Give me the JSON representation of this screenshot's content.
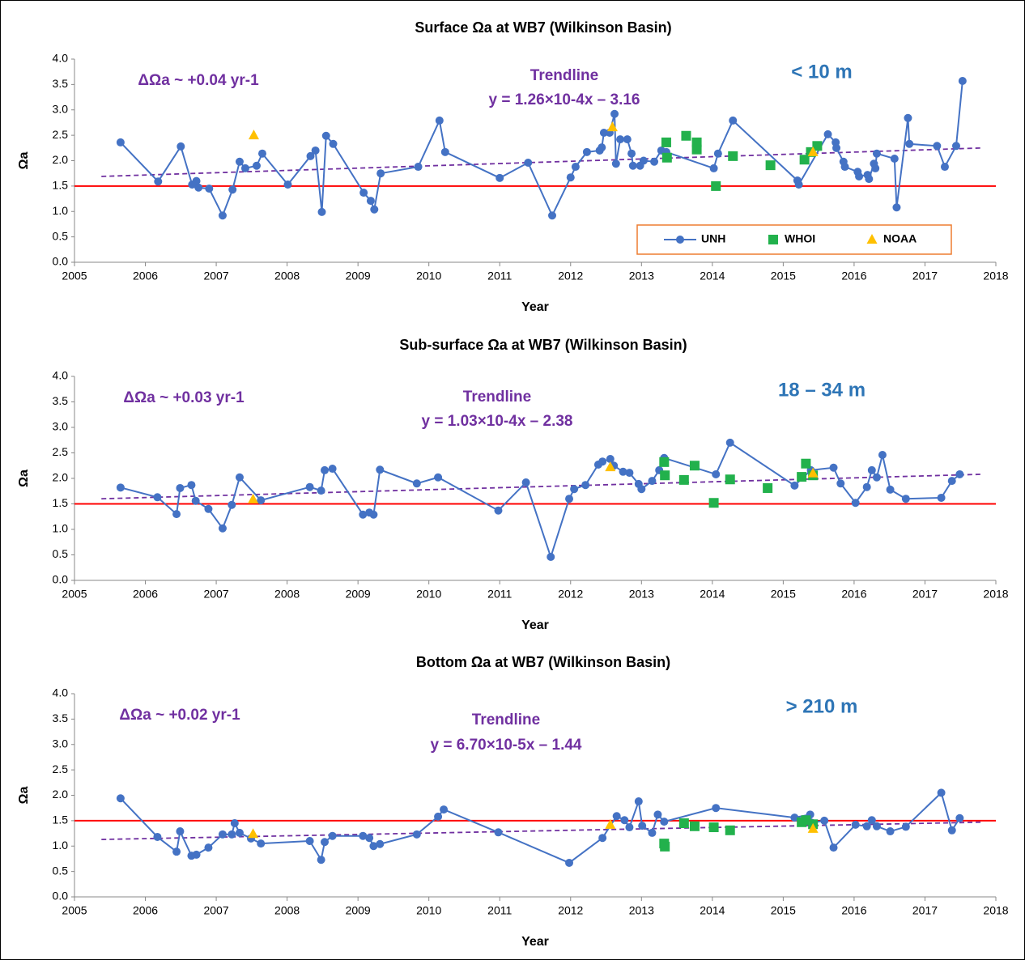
{
  "chart_data": [
    {
      "type": "line",
      "title": "Surface Ωa at WB7 (Wilkinson Basin)",
      "xlabel": "Year",
      "ylabel": "Ωa",
      "xlim": [
        2005,
        2018
      ],
      "xticks": [
        2005,
        2006,
        2007,
        2008,
        2009,
        2010,
        2011,
        2012,
        2013,
        2014,
        2015,
        2016,
        2017,
        2018
      ],
      "ylim": [
        0,
        4
      ],
      "yticks": [
        {
          "value": 0,
          "label": "0.0"
        },
        {
          "value": 0.5,
          "label": "0.5"
        },
        {
          "value": 1,
          "label": "1.0"
        },
        {
          "value": 1.5,
          "label": "1.5"
        },
        {
          "value": 2,
          "label": "2.0"
        },
        {
          "value": 2.5,
          "label": "2.5"
        },
        {
          "value": 3,
          "label": "3.0"
        },
        {
          "value": 3.5,
          "label": "3.5"
        },
        {
          "value": 4,
          "label": "4.0"
        }
      ],
      "threshold": {
        "value": 1.5,
        "color": "#ff0000"
      },
      "trendline": {
        "x": [
          2005.38,
          2017.8
        ],
        "values": [
          1.69,
          2.25
        ],
        "color": "#7030a0"
      },
      "annotations": {
        "rate": "ΔΩa ~ +0.04 yr-1",
        "trend_label": "Trendline",
        "trend_equation": "y = 1.26×10-4x – 3.16",
        "depth": "< 10 m"
      },
      "legend": "lower right",
      "series": [
        {
          "name": "UNH",
          "color": "#4472c4",
          "marker": "circle",
          "line": true,
          "x": [
            2005.65,
            2006.18,
            2006.5,
            2006.66,
            2006.72,
            2006.75,
            2006.9,
            2007.09,
            2007.23,
            2007.33,
            2007.41,
            2007.57,
            2007.65,
            2008.01,
            2008.33,
            2008.4,
            2008.49,
            2008.55,
            2008.65,
            2009.08,
            2009.18,
            2009.23,
            2009.32,
            2009.85,
            2010.15,
            2010.23,
            2011.0,
            2011.4,
            2011.74,
            2012.0,
            2012.07,
            2012.23,
            2012.41,
            2012.44,
            2012.47,
            2012.55,
            2012.62,
            2012.64,
            2012.7,
            2012.8,
            2012.86,
            2012.88,
            2012.98,
            2013.03,
            2013.18,
            2013.28,
            2013.35,
            2014.02,
            2014.08,
            2014.29,
            2015.2,
            2015.22,
            2015.63,
            2015.74,
            2015.75,
            2015.85,
            2015.87,
            2016.05,
            2016.07,
            2016.19,
            2016.21,
            2016.28,
            2016.3,
            2016.32,
            2016.57,
            2016.6,
            2016.76,
            2016.78,
            2017.17,
            2017.28,
            2017.44,
            2017.53
          ],
          "values": [
            2.36,
            1.59,
            2.28,
            1.53,
            1.6,
            1.47,
            1.45,
            0.92,
            1.43,
            1.98,
            1.85,
            1.9,
            2.14,
            1.53,
            2.09,
            2.2,
            0.99,
            2.49,
            2.33,
            1.37,
            1.21,
            1.04,
            1.75,
            1.88,
            2.79,
            2.17,
            1.66,
            1.96,
            0.92,
            1.67,
            1.88,
            2.17,
            2.2,
            2.26,
            2.55,
            2.55,
            2.92,
            1.94,
            2.42,
            2.42,
            2.14,
            1.9,
            1.9,
            2.0,
            1.98,
            2.2,
            2.17,
            1.85,
            2.14,
            2.79,
            1.61,
            1.53,
            2.52,
            2.36,
            2.25,
            1.98,
            1.88,
            1.78,
            1.69,
            1.72,
            1.64,
            1.94,
            1.85,
            2.14,
            2.04,
            1.08,
            2.84,
            2.33,
            2.29,
            1.88,
            2.29,
            3.57
          ]
        },
        {
          "name": "WHOI",
          "color": "#22b14c",
          "marker": "square",
          "line": false,
          "x": [
            2013.35,
            2013.36,
            2013.63,
            2013.78,
            2013.78,
            2014.05,
            2014.29,
            2014.82,
            2015.3,
            2015.39,
            2015.48
          ],
          "values": [
            2.36,
            2.06,
            2.49,
            2.36,
            2.22,
            1.5,
            2.09,
            1.91,
            2.02,
            2.17,
            2.29
          ]
        },
        {
          "name": "NOAA",
          "color": "#ffc000",
          "marker": "triangle",
          "line": false,
          "x": [
            2007.53,
            2012.59,
            2015.42
          ],
          "values": [
            2.5,
            2.66,
            2.17
          ]
        }
      ]
    },
    {
      "type": "line",
      "title": "Sub-surface Ωa at WB7 (Wilkinson Basin)",
      "xlabel": "Year",
      "ylabel": "Ωa",
      "xlim": [
        2005,
        2018
      ],
      "xticks": [
        2005,
        2006,
        2007,
        2008,
        2009,
        2010,
        2011,
        2012,
        2013,
        2014,
        2015,
        2016,
        2017,
        2018
      ],
      "ylim": [
        0,
        4
      ],
      "yticks": [
        {
          "value": 0,
          "label": "0.0"
        },
        {
          "value": 0.5,
          "label": "0.5"
        },
        {
          "value": 1,
          "label": "1.0"
        },
        {
          "value": 1.5,
          "label": "1.5"
        },
        {
          "value": 2,
          "label": "2.0"
        },
        {
          "value": 2.5,
          "label": "2.5"
        },
        {
          "value": 3,
          "label": "3.0"
        },
        {
          "value": 3.5,
          "label": "3.5"
        },
        {
          "value": 4,
          "label": "4.0"
        }
      ],
      "threshold": {
        "value": 1.5,
        "color": "#ff0000"
      },
      "trendline": {
        "x": [
          2005.38,
          2017.8
        ],
        "values": [
          1.6,
          2.08
        ],
        "color": "#7030a0"
      },
      "annotations": {
        "rate": "ΔΩa ~ +0.03 yr-1",
        "trend_label": "Trendline",
        "trend_equation": "y = 1.03×10-4x – 2.38",
        "depth": "18 – 34 m"
      },
      "series": [
        {
          "name": "UNH",
          "color": "#4472c4",
          "marker": "circle",
          "line": true,
          "x": [
            2005.65,
            2006.17,
            2006.44,
            2006.49,
            2006.65,
            2006.71,
            2006.89,
            2007.09,
            2007.22,
            2007.33,
            2007.63,
            2008.32,
            2008.48,
            2008.53,
            2008.64,
            2009.07,
            2009.16,
            2009.22,
            2009.31,
            2009.83,
            2010.13,
            2010.98,
            2011.37,
            2011.72,
            2011.98,
            2012.05,
            2012.21,
            2012.39,
            2012.45,
            2012.56,
            2012.61,
            2012.74,
            2012.83,
            2012.96,
            2013.0,
            2013.15,
            2013.25,
            2013.32,
            2014.05,
            2014.25,
            2015.16,
            2015.39,
            2015.71,
            2015.81,
            2016.02,
            2016.18,
            2016.25,
            2016.32,
            2016.4,
            2016.51,
            2016.73,
            2017.23,
            2017.38,
            2017.49
          ],
          "values": [
            1.82,
            1.63,
            1.3,
            1.81,
            1.87,
            1.56,
            1.4,
            1.02,
            1.48,
            2.02,
            1.57,
            1.83,
            1.76,
            2.16,
            2.19,
            1.29,
            1.33,
            1.29,
            2.17,
            1.9,
            2.02,
            1.37,
            1.92,
            0.46,
            1.6,
            1.79,
            1.87,
            2.27,
            2.33,
            2.38,
            2.25,
            2.13,
            2.11,
            1.89,
            1.79,
            1.95,
            2.16,
            2.4,
            2.08,
            2.7,
            1.86,
            2.16,
            2.21,
            1.9,
            1.52,
            1.83,
            2.16,
            2.02,
            2.46,
            1.78,
            1.6,
            1.62,
            1.95,
            2.08
          ]
        },
        {
          "name": "WHOI",
          "color": "#22b14c",
          "marker": "square",
          "line": false,
          "x": [
            2013.32,
            2013.33,
            2013.6,
            2013.75,
            2014.02,
            2014.25,
            2014.78,
            2015.26,
            2015.32,
            2015.42
          ],
          "values": [
            2.32,
            2.06,
            1.97,
            2.25,
            1.52,
            1.98,
            1.81,
            2.03,
            2.29,
            2.06
          ]
        },
        {
          "name": "NOAA",
          "color": "#ffc000",
          "marker": "triangle",
          "line": false,
          "x": [
            2007.52,
            2012.56,
            2015.42
          ],
          "values": [
            1.59,
            2.22,
            2.1
          ]
        }
      ]
    },
    {
      "type": "line",
      "title": "Bottom Ωa at WB7 (Wilkinson Basin)",
      "xlabel": "Year",
      "ylabel": "Ωa",
      "xlim": [
        2005,
        2018
      ],
      "xticks": [
        2005,
        2006,
        2007,
        2008,
        2009,
        2010,
        2011,
        2012,
        2013,
        2014,
        2015,
        2016,
        2017,
        2018
      ],
      "ylim": [
        0,
        4
      ],
      "yticks": [
        {
          "value": 0,
          "label": "0.0"
        },
        {
          "value": 0.5,
          "label": "0.5"
        },
        {
          "value": 1,
          "label": "1.0"
        },
        {
          "value": 1.5,
          "label": "1.5"
        },
        {
          "value": 2,
          "label": "2.0"
        },
        {
          "value": 2.5,
          "label": "2.5"
        },
        {
          "value": 3,
          "label": "3.0"
        },
        {
          "value": 3.5,
          "label": "3.5"
        },
        {
          "value": 4,
          "label": "4.0"
        }
      ],
      "threshold": {
        "value": 1.5,
        "color": "#ff0000"
      },
      "trendline": {
        "x": [
          2005.38,
          2017.8
        ],
        "values": [
          1.13,
          1.47
        ],
        "color": "#7030a0"
      },
      "annotations": {
        "rate": "ΔΩa ~ +0.02 yr-1",
        "trend_label": "Trendline",
        "trend_equation": "y = 6.70×10-5x – 1.44",
        "depth": "> 210 m"
      },
      "series": [
        {
          "name": "UNH",
          "color": "#4472c4",
          "marker": "circle",
          "line": true,
          "x": [
            2005.65,
            2006.17,
            2006.44,
            2006.49,
            2006.65,
            2006.72,
            2006.89,
            2007.09,
            2007.22,
            2007.26,
            2007.33,
            2007.49,
            2007.63,
            2008.32,
            2008.48,
            2008.53,
            2008.64,
            2009.07,
            2009.16,
            2009.22,
            2009.31,
            2009.83,
            2010.13,
            2010.21,
            2010.98,
            2011.98,
            2012.45,
            2012.65,
            2012.76,
            2012.83,
            2012.96,
            2013.01,
            2013.15,
            2013.23,
            2013.32,
            2014.05,
            2015.16,
            2015.38,
            2015.4,
            2015.58,
            2015.71,
            2016.02,
            2016.18,
            2016.25,
            2016.32,
            2016.51,
            2016.73,
            2017.23,
            2017.38,
            2017.49
          ],
          "values": [
            1.94,
            1.18,
            0.89,
            1.29,
            0.81,
            0.83,
            0.97,
            1.23,
            1.23,
            1.45,
            1.26,
            1.15,
            1.05,
            1.1,
            0.73,
            1.08,
            1.2,
            1.2,
            1.16,
            1.0,
            1.04,
            1.23,
            1.58,
            1.72,
            1.27,
            0.67,
            1.16,
            1.59,
            1.51,
            1.37,
            1.88,
            1.4,
            1.26,
            1.62,
            1.48,
            1.75,
            1.56,
            1.62,
            1.46,
            1.5,
            0.97,
            1.42,
            1.39,
            1.51,
            1.39,
            1.29,
            1.38,
            2.05,
            1.31,
            1.55
          ]
        },
        {
          "name": "WHOI",
          "color": "#22b14c",
          "marker": "square",
          "line": false,
          "x": [
            2013.32,
            2013.33,
            2013.6,
            2013.75,
            2014.02,
            2014.25,
            2015.26,
            2015.32,
            2015.42
          ],
          "values": [
            1.05,
            0.99,
            1.45,
            1.39,
            1.37,
            1.31,
            1.47,
            1.51,
            1.43
          ]
        },
        {
          "name": "NOAA",
          "color": "#ffc000",
          "marker": "triangle",
          "line": false,
          "x": [
            2007.52,
            2012.56,
            2015.42
          ],
          "values": [
            1.24,
            1.42,
            1.34
          ]
        }
      ]
    }
  ]
}
